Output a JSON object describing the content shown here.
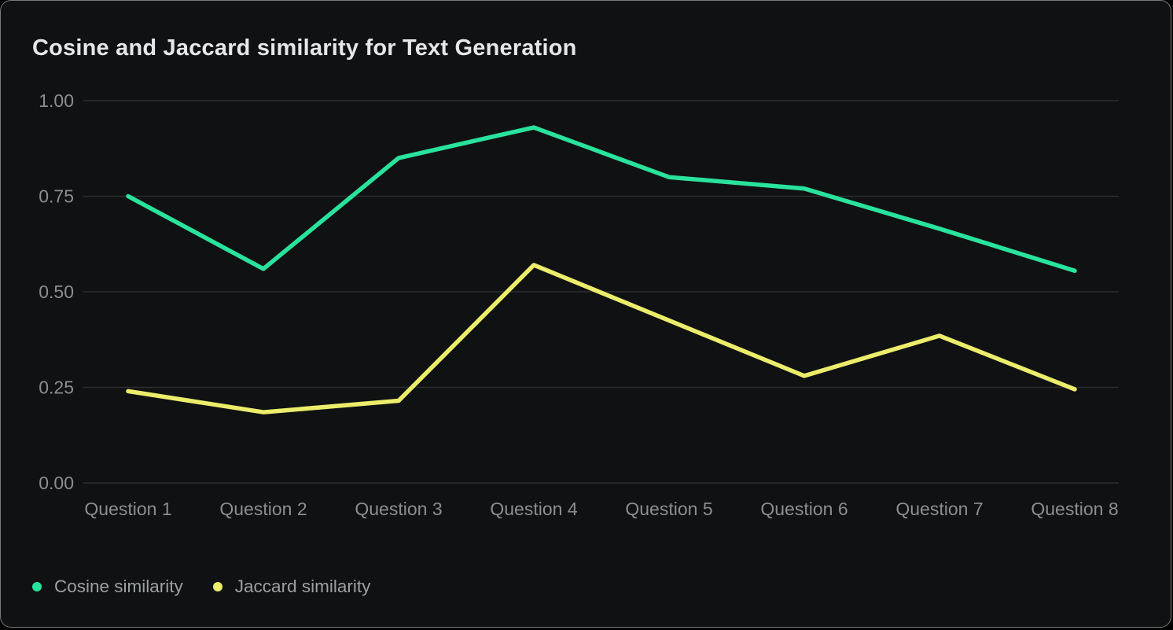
{
  "chart": {
    "title": "Cosine and Jaccard similarity for Text Generation"
  },
  "chart_data": {
    "type": "line",
    "title": "Cosine and Jaccard similarity for Text Generation",
    "categories": [
      "Question 1",
      "Question 2",
      "Question 3",
      "Question 4",
      "Question 5",
      "Question 6",
      "Question 7",
      "Question 8"
    ],
    "series": [
      {
        "name": "Cosine similarity",
        "color": "#29e39c",
        "values": [
          0.75,
          0.56,
          0.85,
          0.93,
          0.8,
          0.77,
          0.665,
          0.555
        ]
      },
      {
        "name": "Jaccard similarity",
        "color": "#ebed6b",
        "values": [
          0.24,
          0.185,
          0.215,
          0.57,
          0.425,
          0.28,
          0.385,
          0.245
        ]
      }
    ],
    "xlabel": "",
    "ylabel": "",
    "ylim": [
      0,
      1
    ],
    "yticks": [
      0,
      0.25,
      0.5,
      0.75,
      1
    ],
    "ytick_labels": [
      "0.00",
      "0.25",
      "0.50",
      "0.75",
      "1.00"
    ],
    "grid": true,
    "legend_position": "bottom-left"
  },
  "colors": {
    "background": "#101112",
    "border": "#777b7d",
    "gridline": "#2c2d2e",
    "tick_text": "#8b8e90",
    "title_text": "#e6e7e8",
    "legend_text": "#9da0a2"
  }
}
